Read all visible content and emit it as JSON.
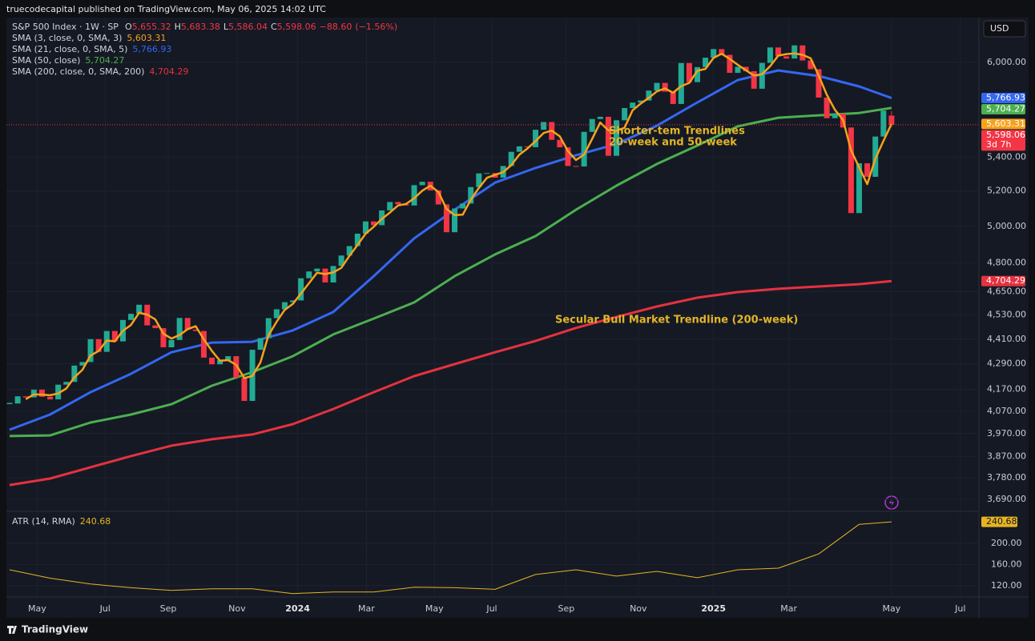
{
  "chart_data": {
    "type": "candlestick",
    "title": "truecodecapital published on TradingView.com, May 06, 2025 14:02 UTC",
    "symbol": "S&P 500 Index · 1W · SP",
    "currency": "USD",
    "brand": "TradingView",
    "countdown": "3d 7h",
    "ohlc": [
      {
        "name": "O",
        "value": 5655.32,
        "label": "5,655.32"
      },
      {
        "name": "H",
        "value": 5683.38,
        "label": "5,683.38"
      },
      {
        "name": "L",
        "value": 5586.04,
        "label": "5,586.04"
      },
      {
        "name": "C",
        "value": 5598.06,
        "label": "5,598.06"
      }
    ],
    "change": {
      "value": -88.6,
      "label": "−88.60"
    },
    "change_pct": {
      "value": -1.56,
      "label": "(−1.56%)"
    },
    "up_color": "#22ab94",
    "down_color": "#f23645",
    "grid": true,
    "log_scale": true,
    "close": [
      4105,
      4138,
      4133,
      4169,
      4136,
      4124,
      4192,
      4205,
      4282,
      4299,
      4410,
      4348,
      4450,
      4399,
      4505,
      4536,
      4582,
      4478,
      4464,
      4370,
      4406,
      4515,
      4457,
      4450,
      4320,
      4288,
      4308,
      4327,
      4224,
      4117,
      4358,
      4415,
      4514,
      4559,
      4595,
      4604,
      4719,
      4755,
      4770,
      4697,
      4784,
      4840,
      4891,
      4959,
      5027,
      5006,
      5089,
      5137,
      5124,
      5117,
      5234,
      5254,
      5204,
      5123,
      4967,
      5100,
      5128,
      5223,
      5303,
      5305,
      5278,
      5347,
      5432,
      5465,
      5460,
      5567,
      5615,
      5505,
      5459,
      5347,
      5344,
      5554,
      5634,
      5648,
      5408,
      5626,
      5703,
      5738,
      5751,
      5815,
      5865,
      5808,
      5729,
      5996,
      5870,
      5969,
      6032,
      6090,
      6051,
      5931,
      5971,
      5942,
      5827,
      5997,
      6101,
      6041,
      6026,
      6115,
      6013,
      5955,
      5770,
      5639,
      5668,
      5581,
      5074,
      5363,
      5283,
      5525,
      5687,
      5598.06
    ],
    "xlim": [
      -0.4,
      119.8
    ],
    "xticks": [
      {
        "value": 3.4,
        "label": "May"
      },
      {
        "value": 11.8,
        "label": "Jul"
      },
      {
        "value": 19.6,
        "label": "Sep"
      },
      {
        "value": 28.1,
        "label": "Nov"
      },
      {
        "value": 35.6,
        "label": "2024"
      },
      {
        "value": 44.1,
        "label": "Mar"
      },
      {
        "value": 52.5,
        "label": "May"
      },
      {
        "value": 59.6,
        "label": "Jul"
      },
      {
        "value": 68.8,
        "label": "Sep"
      },
      {
        "value": 77.7,
        "label": "Nov"
      },
      {
        "value": 87,
        "label": "2025"
      },
      {
        "value": 96.3,
        "label": "Mar"
      },
      {
        "value": 109,
        "label": "May"
      },
      {
        "value": 117.5,
        "label": "Jul"
      }
    ],
    "ylim": [
      3644,
      6307
    ],
    "yticks": [
      {
        "value": 3690,
        "label": "3,690.00"
      },
      {
        "value": 3780,
        "label": "3,780.00"
      },
      {
        "value": 3870,
        "label": "3,870.00"
      },
      {
        "value": 3970,
        "label": "3,970.00"
      },
      {
        "value": 4070,
        "label": "4,070.00"
      },
      {
        "value": 4170,
        "label": "4,170.00"
      },
      {
        "value": 4290,
        "label": "4,290.00"
      },
      {
        "value": 4410,
        "label": "4,410.00"
      },
      {
        "value": 4530,
        "label": "4,530.00"
      },
      {
        "value": 4650,
        "label": "4,650.00"
      },
      {
        "value": 4800,
        "label": "4,800.00"
      },
      {
        "value": 5000,
        "label": "5,000.00"
      },
      {
        "value": 5200,
        "label": "5,200.00"
      },
      {
        "value": 5400,
        "label": "5,400.00"
      },
      {
        "value": 6000,
        "label": "6,000.00"
      }
    ],
    "series": [
      {
        "name": "SMA (200, close, 0, SMA, 200)",
        "color": "#e5323f",
        "x": [
          0,
          5,
          10,
          15,
          20,
          25,
          30,
          35,
          40,
          45,
          50,
          55,
          60,
          65,
          70,
          75,
          80,
          85,
          90,
          95,
          100,
          105,
          109
        ],
        "values": [
          3749,
          3776,
          3824,
          3872,
          3917,
          3945,
          3966,
          4012,
          4080,
          4157,
          4232,
          4289,
          4346,
          4401,
          4465,
          4520,
          4573,
          4618,
          4647,
          4664,
          4676,
          4688,
          4704.29
        ],
        "last": {
          "value": 4704.29,
          "label": "4,704.29"
        }
      },
      {
        "name": "SMA (50, close)",
        "color": "#4caf50",
        "x": [
          0,
          5,
          10,
          15,
          20,
          25,
          30,
          35,
          40,
          45,
          50,
          55,
          60,
          65,
          70,
          75,
          80,
          85,
          90,
          95,
          100,
          105,
          109
        ],
        "values": [
          3959,
          3962,
          4019,
          4055,
          4102,
          4187,
          4251,
          4327,
          4433,
          4512,
          4594,
          4730,
          4846,
          4946,
          5093,
          5231,
          5359,
          5470,
          5588,
          5642,
          5657,
          5672,
          5704.27
        ],
        "last": {
          "value": 5704.27,
          "label": "5,704.27"
        }
      },
      {
        "name": "SMA (21, close, 0, SMA, 5)",
        "color": "#3467f2",
        "x": [
          0,
          5,
          10,
          15,
          20,
          25,
          30,
          35,
          40,
          45,
          50,
          55,
          60,
          65,
          70,
          75,
          80,
          85,
          90,
          95,
          100,
          105,
          109
        ],
        "values": [
          3987,
          4055,
          4157,
          4243,
          4346,
          4393,
          4397,
          4453,
          4545,
          4730,
          4933,
          5093,
          5249,
          5335,
          5411,
          5479,
          5592,
          5739,
          5884,
          5947,
          5910,
          5842,
          5766.93
        ],
        "last": {
          "value": 5766.93,
          "label": "5,766.93"
        }
      },
      {
        "name": "SMA (3, close, 0, SMA, 3)",
        "color": "#f7a21b",
        "values": [
          null,
          null,
          4125,
          4147,
          4146,
          4143,
          4151,
          4174,
          4226,
          4262,
          4330,
          4352,
          4403,
          4399,
          4451,
          4480,
          4541,
          4532,
          4508,
          4437,
          4413,
          4430,
          4459,
          4474,
          4409,
          4353,
          4305,
          4308,
          4286,
          4223,
          4233,
          4297,
          4429,
          4496,
          4556,
          4586,
          4639,
          4693,
          4748,
          4741,
          4750,
          4774,
          4838,
          4897,
          4959,
          4997,
          5041,
          5077,
          5117,
          5126,
          5158,
          5202,
          5231,
          5194,
          5098,
          5063,
          5065,
          5150,
          5218,
          5277,
          5295,
          5310,
          5352,
          5415,
          5452,
          5497,
          5547,
          5562,
          5526,
          5437,
          5383,
          5415,
          5511,
          5612,
          5563,
          5561,
          5579,
          5689,
          5731,
          5768,
          5810,
          5829,
          5801,
          5844,
          5865,
          5945,
          5957,
          6030,
          6058,
          6024,
          5984,
          5948,
          5913,
          5922,
          5975,
          6046,
          6056,
          6061,
          6051,
          6028,
          5913,
          5788,
          5692,
          5629,
          5441,
          5339,
          5240,
          5390,
          5498,
          5603.31
        ],
        "last": {
          "value": 5603.31,
          "label": "5,603.31"
        }
      }
    ],
    "legend_order": [
      3,
      2,
      1,
      0
    ],
    "annotations": [
      {
        "text": "Shorter-tem Trendlines"
      },
      {
        "text": "20-week and 50-week"
      },
      {
        "text": "Secular Bull Market Trendline (200-week)"
      }
    ],
    "atr": {
      "name": "ATR (14, RMA)",
      "color": "#e6b422",
      "x": [
        0,
        5,
        10,
        15,
        20,
        25,
        30,
        35,
        40,
        45,
        50,
        55,
        60,
        65,
        70,
        75,
        80,
        85,
        90,
        95,
        100,
        105,
        109
      ],
      "values": [
        150,
        134,
        123,
        116,
        111,
        114,
        114,
        105,
        108,
        108,
        117,
        116,
        113,
        141,
        150,
        138,
        147,
        135,
        150,
        153,
        180,
        236,
        240.68
      ],
      "last": {
        "value": 240.68,
        "label": "240.68"
      },
      "ylim": [
        100,
        259
      ],
      "yticks": [
        {
          "value": 120,
          "label": "120.00"
        },
        {
          "value": 160,
          "label": "160.00"
        },
        {
          "value": 200,
          "label": "200.00"
        }
      ]
    }
  }
}
